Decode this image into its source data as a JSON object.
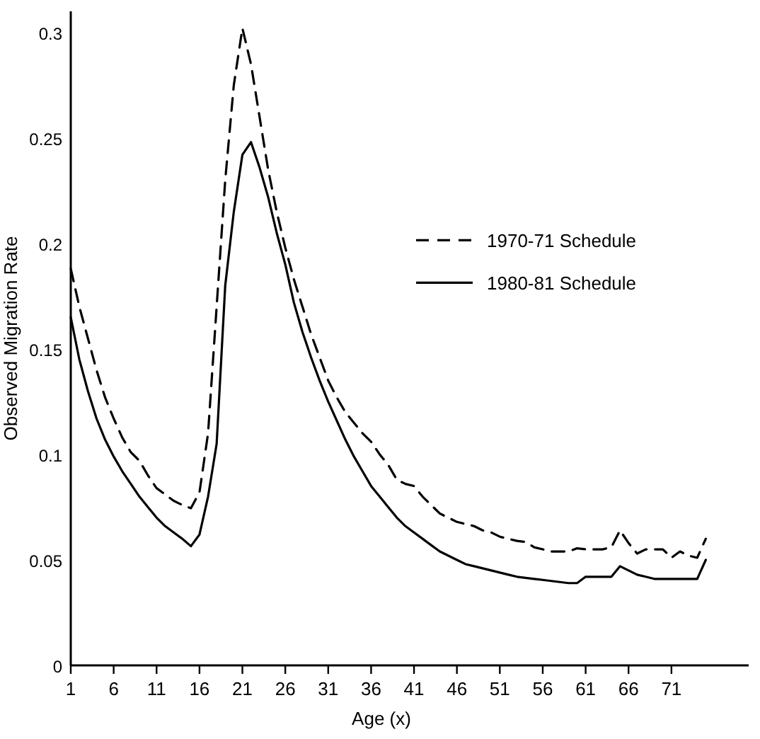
{
  "chart_data": {
    "type": "line",
    "xlabel": "Age (x)",
    "ylabel": "Observed Migration Rate",
    "xlim": [
      1,
      80
    ],
    "xticks": [
      1,
      6,
      11,
      16,
      21,
      26,
      31,
      36,
      41,
      46,
      51,
      56,
      61,
      66,
      71
    ],
    "ylim": [
      0,
      0.31
    ],
    "yticks": [
      0,
      0.05,
      0.1,
      0.15,
      0.2,
      0.25,
      0.3
    ],
    "grid": false,
    "legend": "right",
    "marker": "none",
    "x": [
      1,
      2,
      3,
      4,
      5,
      6,
      7,
      8,
      9,
      10,
      11,
      12,
      13,
      14,
      15,
      16,
      17,
      18,
      19,
      20,
      21,
      22,
      23,
      24,
      25,
      26,
      27,
      28,
      29,
      30,
      31,
      32,
      33,
      34,
      35,
      36,
      37,
      38,
      39,
      40,
      41,
      42,
      43,
      44,
      45,
      46,
      47,
      48,
      49,
      50,
      51,
      52,
      53,
      54,
      55,
      56,
      57,
      58,
      59,
      60,
      61,
      62,
      63,
      64,
      65,
      66,
      67,
      68,
      69,
      70,
      71,
      72,
      73,
      74,
      75
    ],
    "series": [
      {
        "name": "1970-71 Schedule",
        "color": "#000000",
        "line_style": "dashed",
        "values": [
          0.188,
          0.17,
          0.155,
          0.14,
          0.127,
          0.117,
          0.108,
          0.101,
          0.097,
          0.09,
          0.084,
          0.081,
          0.078,
          0.076,
          0.0745,
          0.082,
          0.11,
          0.17,
          0.23,
          0.275,
          0.302,
          0.285,
          0.26,
          0.235,
          0.215,
          0.198,
          0.183,
          0.17,
          0.157,
          0.146,
          0.135,
          0.127,
          0.12,
          0.115,
          0.11,
          0.106,
          0.1,
          0.095,
          0.088,
          0.086,
          0.085,
          0.08,
          0.076,
          0.072,
          0.07,
          0.068,
          0.067,
          0.066,
          0.064,
          0.063,
          0.061,
          0.06,
          0.059,
          0.0585,
          0.056,
          0.055,
          0.054,
          0.054,
          0.054,
          0.0555,
          0.055,
          0.055,
          0.055,
          0.056,
          0.064,
          0.058,
          0.053,
          0.055,
          0.055,
          0.055,
          0.051,
          0.054,
          0.052,
          0.051,
          0.06
        ]
      },
      {
        "name": "1980-81 Schedule",
        "color": "#000000",
        "line_style": "solid",
        "values": [
          0.165,
          0.145,
          0.13,
          0.117,
          0.107,
          0.099,
          0.092,
          0.086,
          0.08,
          0.075,
          0.07,
          0.066,
          0.063,
          0.06,
          0.0565,
          0.062,
          0.08,
          0.105,
          0.18,
          0.215,
          0.242,
          0.248,
          0.236,
          0.222,
          0.205,
          0.19,
          0.172,
          0.158,
          0.146,
          0.135,
          0.125,
          0.116,
          0.107,
          0.099,
          0.092,
          0.085,
          0.08,
          0.075,
          0.07,
          0.066,
          0.063,
          0.06,
          0.057,
          0.054,
          0.052,
          0.05,
          0.048,
          0.047,
          0.046,
          0.045,
          0.044,
          0.043,
          0.042,
          0.0415,
          0.041,
          0.0405,
          0.04,
          0.0395,
          0.039,
          0.039,
          0.042,
          0.042,
          0.042,
          0.042,
          0.047,
          0.045,
          0.043,
          0.042,
          0.041,
          0.041,
          0.041,
          0.041,
          0.041,
          0.041,
          0.05
        ]
      }
    ]
  }
}
